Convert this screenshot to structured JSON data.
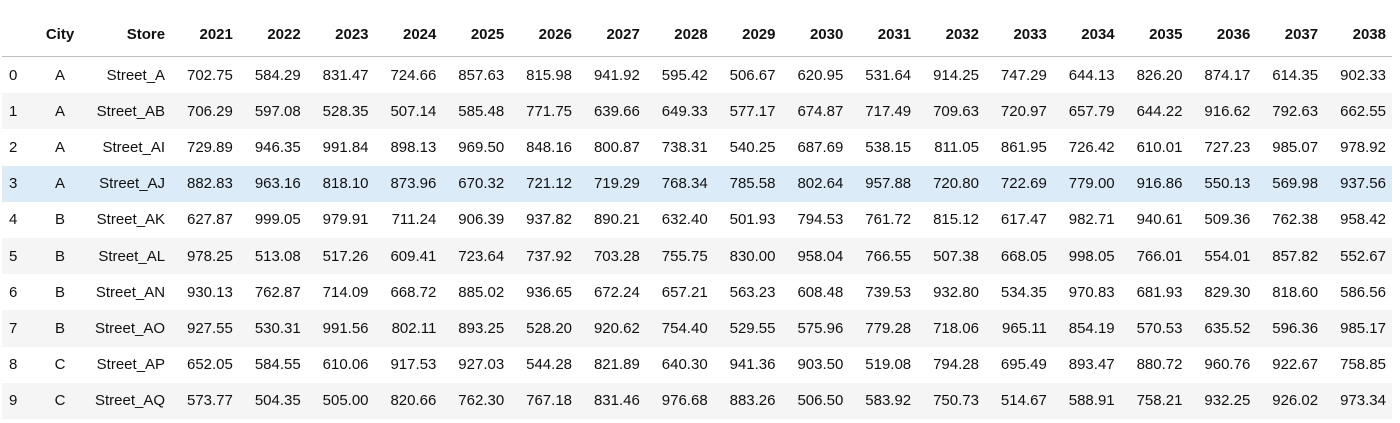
{
  "table": {
    "index_header": "",
    "columns": [
      "City",
      "Store",
      "2021",
      "2022",
      "2023",
      "2024",
      "2025",
      "2026",
      "2027",
      "2028",
      "2029",
      "2030",
      "2031",
      "2032",
      "2033",
      "2034",
      "2035",
      "2036",
      "2037",
      "2038"
    ],
    "highlighted_row_index": 3,
    "rows": [
      {
        "index": "0",
        "city": "A",
        "store": "Street_A",
        "values": [
          "702.75",
          "584.29",
          "831.47",
          "724.66",
          "857.63",
          "815.98",
          "941.92",
          "595.42",
          "506.67",
          "620.95",
          "531.64",
          "914.25",
          "747.29",
          "644.13",
          "826.20",
          "874.17",
          "614.35",
          "902.33"
        ]
      },
      {
        "index": "1",
        "city": "A",
        "store": "Street_AB",
        "values": [
          "706.29",
          "597.08",
          "528.35",
          "507.14",
          "585.48",
          "771.75",
          "639.66",
          "649.33",
          "577.17",
          "674.87",
          "717.49",
          "709.63",
          "720.97",
          "657.79",
          "644.22",
          "916.62",
          "792.63",
          "662.55"
        ]
      },
      {
        "index": "2",
        "city": "A",
        "store": "Street_AI",
        "values": [
          "729.89",
          "946.35",
          "991.84",
          "898.13",
          "969.50",
          "848.16",
          "800.87",
          "738.31",
          "540.25",
          "687.69",
          "538.15",
          "811.05",
          "861.95",
          "726.42",
          "610.01",
          "727.23",
          "985.07",
          "978.92"
        ]
      },
      {
        "index": "3",
        "city": "A",
        "store": "Street_AJ",
        "values": [
          "882.83",
          "963.16",
          "818.10",
          "873.96",
          "670.32",
          "721.12",
          "719.29",
          "768.34",
          "785.58",
          "802.64",
          "957.88",
          "720.80",
          "722.69",
          "779.00",
          "916.86",
          "550.13",
          "569.98",
          "937.56"
        ]
      },
      {
        "index": "4",
        "city": "B",
        "store": "Street_AK",
        "values": [
          "627.87",
          "999.05",
          "979.91",
          "711.24",
          "906.39",
          "937.82",
          "890.21",
          "632.40",
          "501.93",
          "794.53",
          "761.72",
          "815.12",
          "617.47",
          "982.71",
          "940.61",
          "509.36",
          "762.38",
          "958.42"
        ]
      },
      {
        "index": "5",
        "city": "B",
        "store": "Street_AL",
        "values": [
          "978.25",
          "513.08",
          "517.26",
          "609.41",
          "723.64",
          "737.92",
          "703.28",
          "755.75",
          "830.00",
          "958.04",
          "766.55",
          "507.38",
          "668.05",
          "998.05",
          "766.01",
          "554.01",
          "857.82",
          "552.67"
        ]
      },
      {
        "index": "6",
        "city": "B",
        "store": "Street_AN",
        "values": [
          "930.13",
          "762.87",
          "714.09",
          "668.72",
          "885.02",
          "936.65",
          "672.24",
          "657.21",
          "563.23",
          "608.48",
          "739.53",
          "932.80",
          "534.35",
          "970.83",
          "681.93",
          "829.30",
          "818.60",
          "586.56"
        ]
      },
      {
        "index": "7",
        "city": "B",
        "store": "Street_AO",
        "values": [
          "927.55",
          "530.31",
          "991.56",
          "802.11",
          "893.25",
          "528.20",
          "920.62",
          "754.40",
          "529.55",
          "575.96",
          "779.28",
          "718.06",
          "965.11",
          "854.19",
          "570.53",
          "635.52",
          "596.36",
          "985.17"
        ]
      },
      {
        "index": "8",
        "city": "C",
        "store": "Street_AP",
        "values": [
          "652.05",
          "584.55",
          "610.06",
          "917.53",
          "927.03",
          "544.28",
          "821.89",
          "640.30",
          "941.36",
          "903.50",
          "519.08",
          "794.28",
          "695.49",
          "893.47",
          "880.72",
          "960.76",
          "922.67",
          "758.85"
        ]
      },
      {
        "index": "9",
        "city": "C",
        "store": "Street_AQ",
        "values": [
          "573.77",
          "504.35",
          "505.00",
          "820.66",
          "762.30",
          "767.18",
          "831.46",
          "976.68",
          "883.26",
          "506.50",
          "583.92",
          "750.73",
          "514.67",
          "588.91",
          "758.21",
          "932.25",
          "926.02",
          "973.34"
        ]
      }
    ]
  },
  "colors": {
    "row_stripe": "#f5f5f5",
    "row_hover": "#dcebf8",
    "header_rule": "#bdbdbd"
  }
}
